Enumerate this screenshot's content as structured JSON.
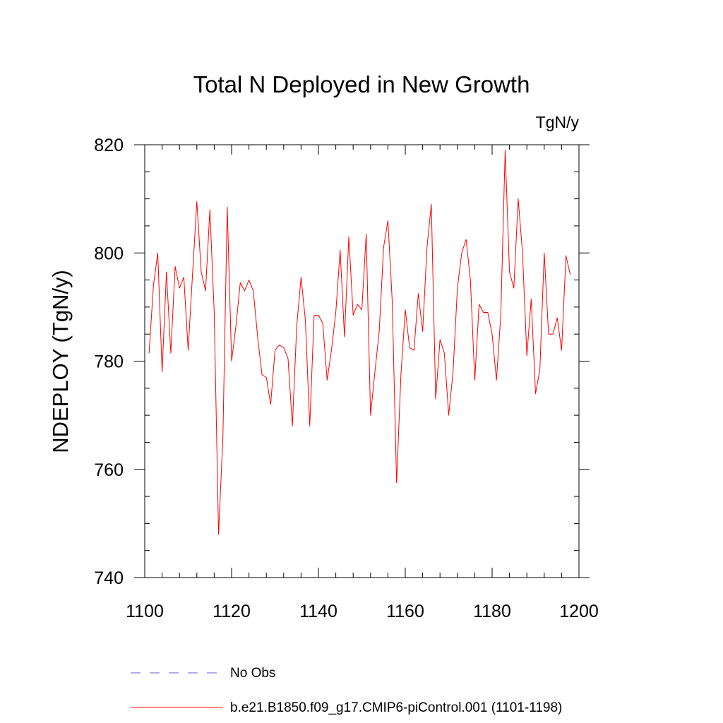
{
  "chart_data": {
    "type": "line",
    "title": "Total N Deployed in New Growth",
    "units": "TgN/y",
    "xlabel": "",
    "ylabel": "NDEPLOY  (TgN/y)",
    "xlim": [
      1100,
      1200
    ],
    "ylim": [
      740,
      820
    ],
    "x_ticks": [
      "1100",
      "1120",
      "1140",
      "1160",
      "1180",
      "1200"
    ],
    "y_ticks": [
      "740",
      "760",
      "780",
      "800",
      "820"
    ],
    "x_minor_step": 4,
    "y_minor_step": 5,
    "series": [
      {
        "name": "No Obs",
        "color": "#6a5acd",
        "style": "dashed",
        "values": []
      },
      {
        "name": "b.e21.B1850.f09_g17.CMIP6-piControl.001 (1101-1198)",
        "color": "#ff0000",
        "style": "solid",
        "x_start": 1101,
        "x_step": 1,
        "values": [
          781.5,
          794.0,
          800.0,
          778.0,
          796.5,
          781.5,
          797.5,
          793.5,
          795.5,
          782.0,
          796.0,
          809.5,
          796.5,
          793.0,
          808.0,
          789.0,
          748.0,
          766.0,
          808.5,
          780.0,
          786.5,
          794.5,
          793.0,
          795.0,
          793.0,
          784.5,
          777.5,
          777.0,
          772.0,
          782.0,
          783.0,
          782.5,
          780.5,
          768.0,
          786.5,
          795.5,
          787.5,
          768.0,
          788.5,
          788.5,
          787.0,
          776.5,
          782.0,
          789.0,
          800.5,
          784.5,
          803.0,
          788.5,
          790.5,
          789.5,
          803.5,
          770.0,
          778.0,
          785.5,
          801.0,
          806.0,
          791.0,
          757.5,
          777.5,
          789.5,
          782.5,
          782.0,
          792.5,
          785.5,
          801.0,
          809.0,
          773.0,
          784.0,
          781.5,
          770.0,
          778.0,
          793.5,
          800.0,
          802.5,
          795.0,
          776.5,
          790.5,
          789.0,
          789.0,
          785.0,
          776.5,
          788.5,
          819.0,
          796.5,
          793.5,
          810.0,
          800.0,
          781.0,
          791.5,
          774.0,
          778.5,
          800.0,
          785.0,
          785.0,
          788.0,
          782.0,
          799.5,
          796.0
        ]
      }
    ]
  }
}
